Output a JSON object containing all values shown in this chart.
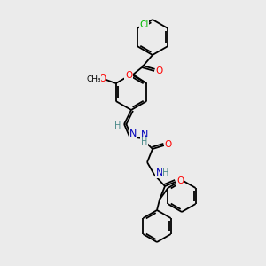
{
  "background_color": "#ebebeb",
  "bond_color": "#000000",
  "atom_colors": {
    "O": "#ff0000",
    "N": "#0000bb",
    "Cl": "#00bb00",
    "C": "#000000",
    "H": "#4a8a8a"
  },
  "figsize": [
    3.0,
    3.0
  ],
  "dpi": 100
}
